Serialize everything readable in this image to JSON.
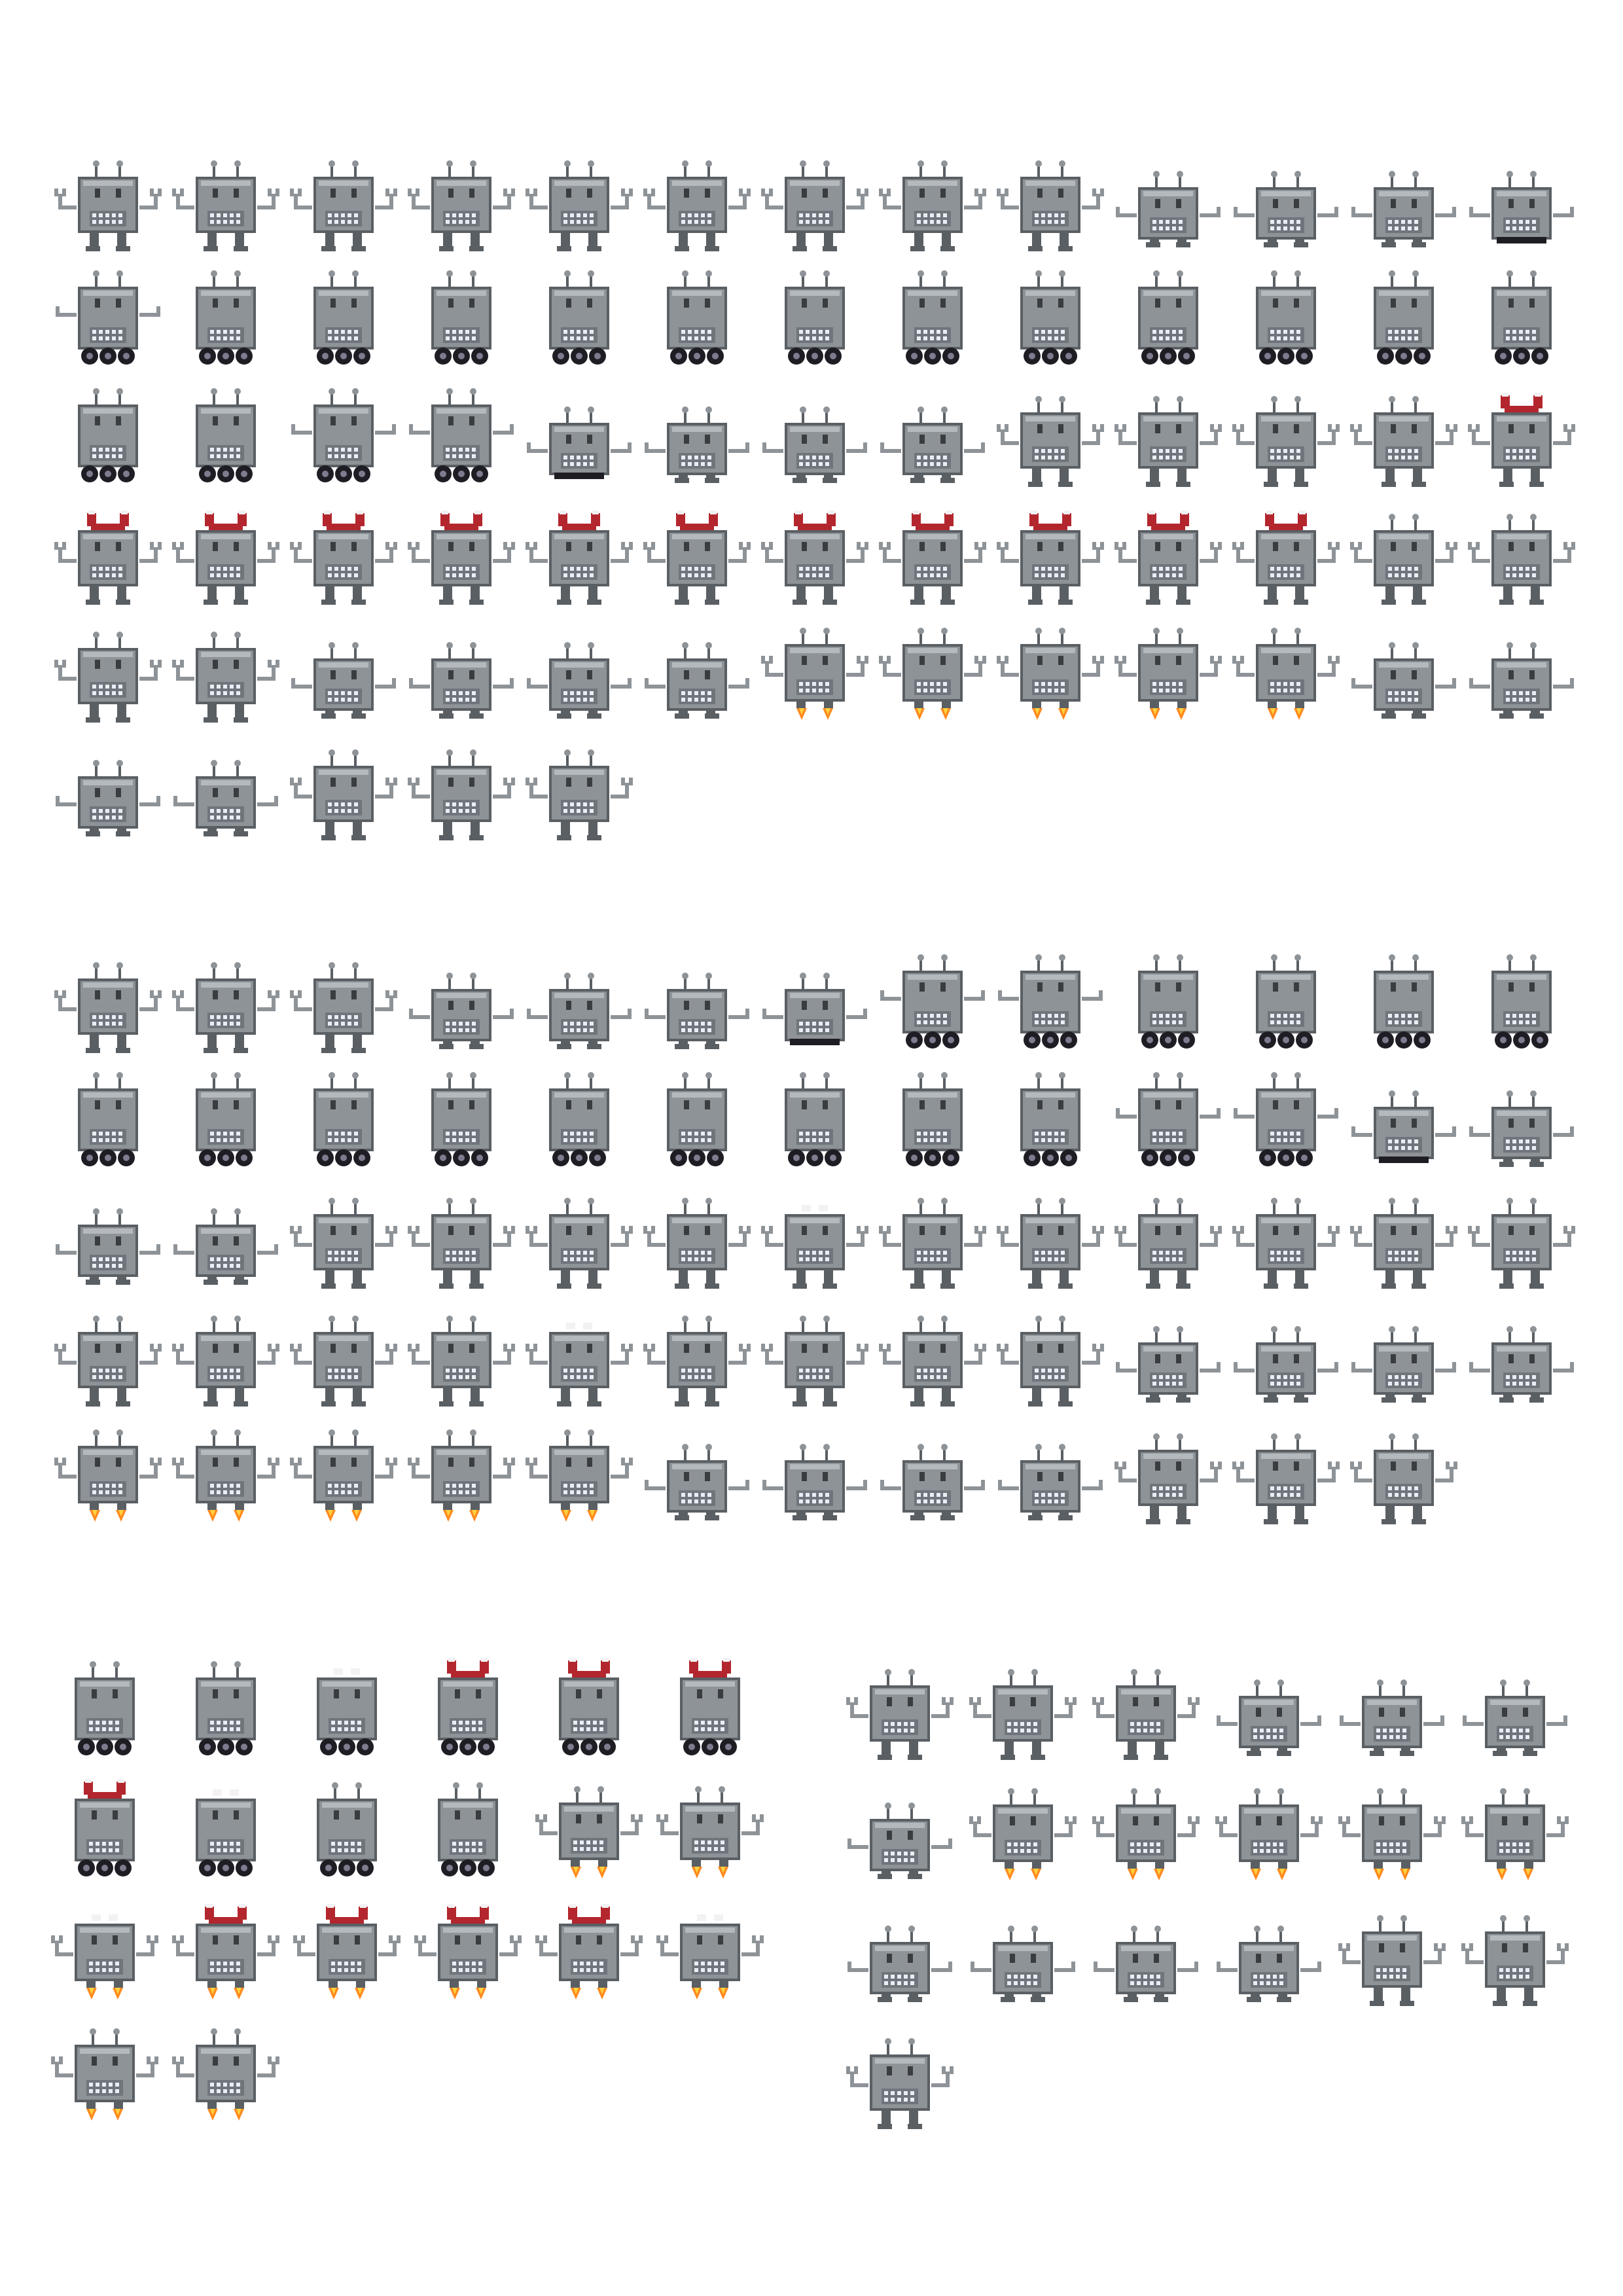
{
  "sheet": {
    "kind": "robot sprite sheet",
    "background": "#ffffff",
    "palette": {
      "body": "#8e9398",
      "body_highlight": "#b4b9be",
      "outline": "#5a5f64",
      "screen": "#6f757b",
      "teeth": "#e8eef5",
      "eye": "#3a3d40",
      "wheel": "#1f1d24",
      "wheel_hub": "#7f7b8f",
      "helmet": "#b3262d",
      "helmet_dark": "#7e1a20",
      "helmet_white": "#f2f2f2",
      "flame": "#ff8a1e",
      "flame_core": "#ffd23e"
    },
    "sections": [
      {
        "name": "robot-basic",
        "rows": [
          [
            "stand",
            "stand",
            "stand",
            "stand",
            "stand",
            "stand",
            "stand",
            "stand",
            "stand",
            "crouch",
            "crouch",
            "crouch",
            "roll"
          ],
          [
            "wheels-arms",
            "wheels",
            "wheels",
            "wheels",
            "wheels",
            "wheels",
            "wheels",
            "wheels",
            "wheels",
            "wheels",
            "wheels",
            "wheels",
            "wheels"
          ],
          [
            "wheels",
            "wheels",
            "wheels-arms",
            "wheels-arms",
            "roll",
            "crouch",
            "crouch",
            "crouch",
            "stand",
            "stand",
            "stand",
            "stand",
            "stand-helmet-small"
          ],
          [
            "stand-helmet",
            "stand-helmet",
            "stand-helmet",
            "stand-helmet",
            "stand-helmet",
            "stand-helmet",
            "stand-helmet",
            "stand-helmet",
            "stand-helmet",
            "stand-helmet",
            "stand-helmet-small",
            "stand",
            "stand"
          ],
          [
            "stand",
            "stand",
            "crouch",
            "crouch",
            "crouch",
            "crouch",
            "jet",
            "jet",
            "jet",
            "jet",
            "jet",
            "crouch",
            "crouch"
          ],
          [
            "crouch",
            "crouch",
            "stand",
            "stand",
            "stand"
          ]
        ]
      },
      {
        "name": "robot-helmet",
        "rows": [
          [
            "stand",
            "stand",
            "stand",
            "crouch",
            "crouch",
            "crouch",
            "roll",
            "wheels-arms",
            "wheels-arms",
            "wheels",
            "wheels",
            "wheels",
            "wheels"
          ],
          [
            "wheels",
            "wheels",
            "wheels",
            "wheels",
            "wheels",
            "wheels",
            "wheels",
            "wheels",
            "wheels",
            "wheels-arms",
            "wheels-arms",
            "roll",
            "crouch"
          ],
          [
            "crouch",
            "crouch",
            "stand",
            "stand",
            "stand",
            "stand-antenna",
            "stand-small",
            "stand",
            "stand",
            "stand",
            "stand",
            "stand",
            "stand"
          ],
          [
            "stand",
            "stand",
            "stand",
            "stand",
            "stand-small",
            "stand-antenna",
            "stand",
            "stand",
            "stand",
            "crouch",
            "crouch",
            "crouch",
            "crouch"
          ],
          [
            "jet",
            "jet",
            "jet",
            "jet",
            "jet",
            "crouch",
            "crouch",
            "crouch",
            "crouch",
            "stand",
            "stand",
            "stand"
          ]
        ]
      },
      {
        "name": "robot-wheels-jet",
        "rows": [
          [
            "wheels",
            "wheels",
            "wheels-small",
            "wheels-helmet",
            "wheels-helmet",
            "wheels-helmet"
          ],
          [
            "wheels-helmet",
            "wheels-small",
            "wheels",
            "wheels",
            "jet",
            "jet"
          ],
          [
            "jet-small",
            "jet-helmet",
            "jet-helmet",
            "jet-helmet",
            "jet-helmet",
            "jet-small"
          ],
          [
            "jet",
            "jet"
          ]
        ]
      },
      {
        "name": "robot-helmet-extra",
        "rows": [
          [
            "stand",
            "stand",
            "stand",
            "crouch",
            "crouch",
            "crouch"
          ],
          [
            "crouch",
            "jet",
            "jet",
            "jet",
            "jet",
            "jet"
          ],
          [
            "crouch",
            "crouch",
            "crouch",
            "crouch",
            "stand",
            "stand"
          ],
          [
            "stand"
          ]
        ]
      }
    ]
  }
}
